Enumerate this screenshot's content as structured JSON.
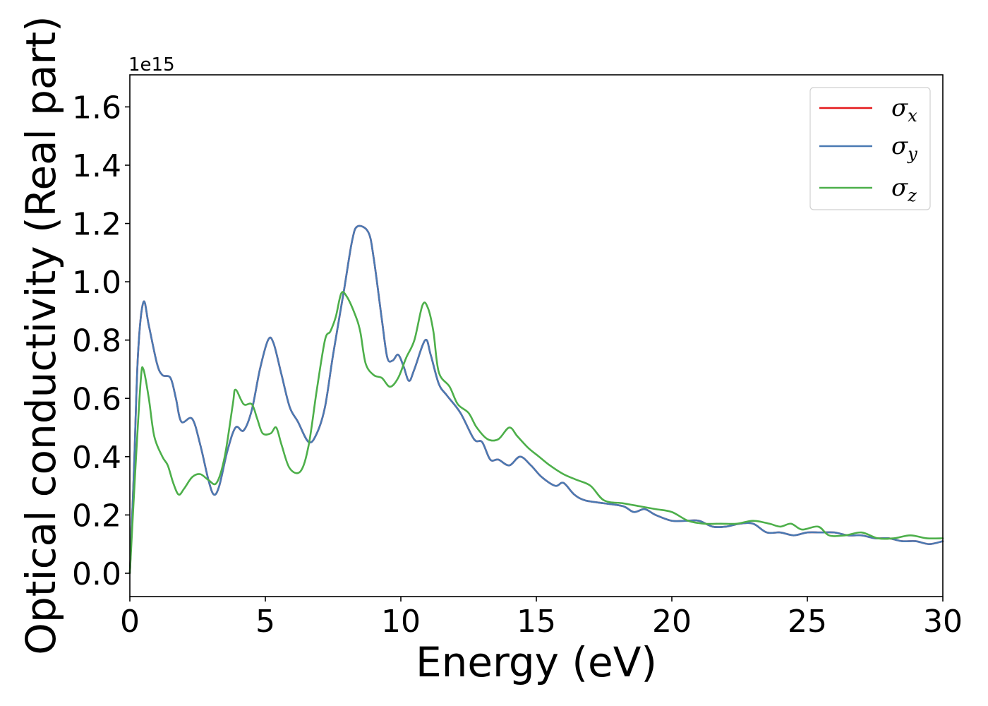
{
  "chart_data": {
    "type": "line",
    "xlabel": "Energy (eV)",
    "ylabel": "Optical conductivity (Real part)",
    "y_offset_label": "1e15",
    "xlim": [
      0,
      30
    ],
    "ylim": [
      -0.08,
      1.71
    ],
    "x_ticks": [
      0,
      5,
      10,
      15,
      20,
      25,
      30
    ],
    "x_tick_labels": [
      "0",
      "5",
      "10",
      "15",
      "20",
      "25",
      "30"
    ],
    "y_ticks": [
      0.0,
      0.2,
      0.4,
      0.6,
      0.8,
      1.0,
      1.2,
      1.4,
      1.6
    ],
    "y_tick_labels": [
      "0.0",
      "0.2",
      "0.4",
      "0.6",
      "0.8",
      "1.0",
      "1.2",
      "1.4",
      "1.6"
    ],
    "grid": false,
    "legend_position": "top-right",
    "series": [
      {
        "name": "σx",
        "legend_symbol": "σ",
        "legend_sub": "x",
        "color": "#e41a1c",
        "points": [
          [
            0,
            0.0
          ],
          [
            0.15,
            0.35
          ],
          [
            0.3,
            0.75
          ],
          [
            0.5,
            0.93
          ],
          [
            0.7,
            0.85
          ],
          [
            1.0,
            0.72
          ],
          [
            1.2,
            0.68
          ],
          [
            1.5,
            0.67
          ],
          [
            1.7,
            0.6
          ],
          [
            1.9,
            0.52
          ],
          [
            2.3,
            0.53
          ],
          [
            2.6,
            0.44
          ],
          [
            2.9,
            0.32
          ],
          [
            3.1,
            0.27
          ],
          [
            3.3,
            0.3
          ],
          [
            3.6,
            0.42
          ],
          [
            3.9,
            0.5
          ],
          [
            4.2,
            0.49
          ],
          [
            4.5,
            0.56
          ],
          [
            4.8,
            0.7
          ],
          [
            5.1,
            0.8
          ],
          [
            5.3,
            0.79
          ],
          [
            5.6,
            0.68
          ],
          [
            5.9,
            0.57
          ],
          [
            6.2,
            0.52
          ],
          [
            6.6,
            0.45
          ],
          [
            6.9,
            0.48
          ],
          [
            7.2,
            0.57
          ],
          [
            7.5,
            0.75
          ],
          [
            7.9,
            0.97
          ],
          [
            8.2,
            1.14
          ],
          [
            8.4,
            1.19
          ],
          [
            8.8,
            1.17
          ],
          [
            9.0,
            1.08
          ],
          [
            9.3,
            0.87
          ],
          [
            9.5,
            0.74
          ],
          [
            9.7,
            0.73
          ],
          [
            9.9,
            0.75
          ],
          [
            10.1,
            0.71
          ],
          [
            10.3,
            0.66
          ],
          [
            10.5,
            0.7
          ],
          [
            10.9,
            0.8
          ],
          [
            11.1,
            0.75
          ],
          [
            11.4,
            0.65
          ],
          [
            11.7,
            0.61
          ],
          [
            12.2,
            0.55
          ],
          [
            12.7,
            0.46
          ],
          [
            13.0,
            0.45
          ],
          [
            13.3,
            0.39
          ],
          [
            13.6,
            0.39
          ],
          [
            14.0,
            0.37
          ],
          [
            14.4,
            0.4
          ],
          [
            14.8,
            0.37
          ],
          [
            15.2,
            0.33
          ],
          [
            15.7,
            0.3
          ],
          [
            16.0,
            0.31
          ],
          [
            16.4,
            0.27
          ],
          [
            16.8,
            0.25
          ],
          [
            17.5,
            0.24
          ],
          [
            18.2,
            0.23
          ],
          [
            18.6,
            0.21
          ],
          [
            19.0,
            0.22
          ],
          [
            19.4,
            0.2
          ],
          [
            20.0,
            0.18
          ],
          [
            20.5,
            0.18
          ],
          [
            21.0,
            0.18
          ],
          [
            21.5,
            0.16
          ],
          [
            22.0,
            0.16
          ],
          [
            22.5,
            0.17
          ],
          [
            23.0,
            0.17
          ],
          [
            23.5,
            0.14
          ],
          [
            24.0,
            0.14
          ],
          [
            24.5,
            0.13
          ],
          [
            25.0,
            0.14
          ],
          [
            25.5,
            0.14
          ],
          [
            26.0,
            0.14
          ],
          [
            26.5,
            0.13
          ],
          [
            27.0,
            0.13
          ],
          [
            27.5,
            0.12
          ],
          [
            28.0,
            0.12
          ],
          [
            28.5,
            0.11
          ],
          [
            29.0,
            0.11
          ],
          [
            29.5,
            0.1
          ],
          [
            30.0,
            0.11
          ]
        ]
      },
      {
        "name": "σy",
        "legend_symbol": "σ",
        "legend_sub": "y",
        "color": "#4a7ab3",
        "points": [
          [
            0,
            0.0
          ],
          [
            0.15,
            0.35
          ],
          [
            0.3,
            0.75
          ],
          [
            0.5,
            0.93
          ],
          [
            0.7,
            0.85
          ],
          [
            1.0,
            0.72
          ],
          [
            1.2,
            0.68
          ],
          [
            1.5,
            0.67
          ],
          [
            1.7,
            0.6
          ],
          [
            1.9,
            0.52
          ],
          [
            2.3,
            0.53
          ],
          [
            2.6,
            0.44
          ],
          [
            2.9,
            0.32
          ],
          [
            3.1,
            0.27
          ],
          [
            3.3,
            0.3
          ],
          [
            3.6,
            0.42
          ],
          [
            3.9,
            0.5
          ],
          [
            4.2,
            0.49
          ],
          [
            4.5,
            0.56
          ],
          [
            4.8,
            0.7
          ],
          [
            5.1,
            0.8
          ],
          [
            5.3,
            0.79
          ],
          [
            5.6,
            0.68
          ],
          [
            5.9,
            0.57
          ],
          [
            6.2,
            0.52
          ],
          [
            6.6,
            0.45
          ],
          [
            6.9,
            0.48
          ],
          [
            7.2,
            0.57
          ],
          [
            7.5,
            0.75
          ],
          [
            7.9,
            0.97
          ],
          [
            8.2,
            1.14
          ],
          [
            8.4,
            1.19
          ],
          [
            8.8,
            1.17
          ],
          [
            9.0,
            1.08
          ],
          [
            9.3,
            0.87
          ],
          [
            9.5,
            0.74
          ],
          [
            9.7,
            0.73
          ],
          [
            9.9,
            0.75
          ],
          [
            10.1,
            0.71
          ],
          [
            10.3,
            0.66
          ],
          [
            10.5,
            0.7
          ],
          [
            10.9,
            0.8
          ],
          [
            11.1,
            0.75
          ],
          [
            11.4,
            0.65
          ],
          [
            11.7,
            0.61
          ],
          [
            12.2,
            0.55
          ],
          [
            12.7,
            0.46
          ],
          [
            13.0,
            0.45
          ],
          [
            13.3,
            0.39
          ],
          [
            13.6,
            0.39
          ],
          [
            14.0,
            0.37
          ],
          [
            14.4,
            0.4
          ],
          [
            14.8,
            0.37
          ],
          [
            15.2,
            0.33
          ],
          [
            15.7,
            0.3
          ],
          [
            16.0,
            0.31
          ],
          [
            16.4,
            0.27
          ],
          [
            16.8,
            0.25
          ],
          [
            17.5,
            0.24
          ],
          [
            18.2,
            0.23
          ],
          [
            18.6,
            0.21
          ],
          [
            19.0,
            0.22
          ],
          [
            19.4,
            0.2
          ],
          [
            20.0,
            0.18
          ],
          [
            20.5,
            0.18
          ],
          [
            21.0,
            0.18
          ],
          [
            21.5,
            0.16
          ],
          [
            22.0,
            0.16
          ],
          [
            22.5,
            0.17
          ],
          [
            23.0,
            0.17
          ],
          [
            23.5,
            0.14
          ],
          [
            24.0,
            0.14
          ],
          [
            24.5,
            0.13
          ],
          [
            25.0,
            0.14
          ],
          [
            25.5,
            0.14
          ],
          [
            26.0,
            0.14
          ],
          [
            26.5,
            0.13
          ],
          [
            27.0,
            0.13
          ],
          [
            27.5,
            0.12
          ],
          [
            28.0,
            0.12
          ],
          [
            28.5,
            0.11
          ],
          [
            29.0,
            0.11
          ],
          [
            29.5,
            0.1
          ],
          [
            30.0,
            0.11
          ]
        ]
      },
      {
        "name": "σz",
        "legend_symbol": "σ",
        "legend_sub": "z",
        "color": "#4daf4a",
        "points": [
          [
            0,
            0.0
          ],
          [
            0.2,
            0.35
          ],
          [
            0.4,
            0.66
          ],
          [
            0.5,
            0.7
          ],
          [
            0.7,
            0.6
          ],
          [
            0.9,
            0.47
          ],
          [
            1.2,
            0.4
          ],
          [
            1.4,
            0.37
          ],
          [
            1.6,
            0.31
          ],
          [
            1.8,
            0.27
          ],
          [
            2.0,
            0.29
          ],
          [
            2.3,
            0.33
          ],
          [
            2.6,
            0.34
          ],
          [
            2.9,
            0.32
          ],
          [
            3.2,
            0.31
          ],
          [
            3.5,
            0.4
          ],
          [
            3.8,
            0.58
          ],
          [
            3.9,
            0.63
          ],
          [
            4.2,
            0.58
          ],
          [
            4.5,
            0.58
          ],
          [
            4.7,
            0.53
          ],
          [
            4.9,
            0.48
          ],
          [
            5.2,
            0.48
          ],
          [
            5.4,
            0.5
          ],
          [
            5.6,
            0.44
          ],
          [
            5.9,
            0.36
          ],
          [
            6.3,
            0.35
          ],
          [
            6.6,
            0.44
          ],
          [
            6.9,
            0.63
          ],
          [
            7.2,
            0.8
          ],
          [
            7.4,
            0.83
          ],
          [
            7.6,
            0.88
          ],
          [
            7.8,
            0.96
          ],
          [
            8.0,
            0.95
          ],
          [
            8.3,
            0.89
          ],
          [
            8.5,
            0.83
          ],
          [
            8.7,
            0.72
          ],
          [
            9.0,
            0.68
          ],
          [
            9.3,
            0.67
          ],
          [
            9.6,
            0.64
          ],
          [
            9.9,
            0.67
          ],
          [
            10.2,
            0.74
          ],
          [
            10.5,
            0.8
          ],
          [
            10.8,
            0.92
          ],
          [
            11.0,
            0.91
          ],
          [
            11.2,
            0.83
          ],
          [
            11.4,
            0.69
          ],
          [
            11.8,
            0.64
          ],
          [
            12.1,
            0.58
          ],
          [
            12.5,
            0.55
          ],
          [
            12.8,
            0.5
          ],
          [
            13.2,
            0.46
          ],
          [
            13.6,
            0.46
          ],
          [
            14.0,
            0.5
          ],
          [
            14.3,
            0.47
          ],
          [
            14.7,
            0.43
          ],
          [
            15.1,
            0.4
          ],
          [
            15.5,
            0.37
          ],
          [
            16.0,
            0.34
          ],
          [
            16.5,
            0.32
          ],
          [
            17.0,
            0.3
          ],
          [
            17.5,
            0.25
          ],
          [
            18.2,
            0.24
          ],
          [
            18.8,
            0.23
          ],
          [
            19.4,
            0.22
          ],
          [
            20.0,
            0.21
          ],
          [
            20.6,
            0.18
          ],
          [
            21.2,
            0.17
          ],
          [
            21.8,
            0.17
          ],
          [
            22.4,
            0.17
          ],
          [
            23.0,
            0.18
          ],
          [
            23.6,
            0.17
          ],
          [
            24.0,
            0.16
          ],
          [
            24.4,
            0.17
          ],
          [
            24.8,
            0.15
          ],
          [
            25.4,
            0.16
          ],
          [
            25.8,
            0.13
          ],
          [
            26.4,
            0.13
          ],
          [
            27.0,
            0.14
          ],
          [
            27.6,
            0.12
          ],
          [
            28.2,
            0.12
          ],
          [
            28.8,
            0.13
          ],
          [
            29.4,
            0.12
          ],
          [
            30.0,
            0.12
          ]
        ]
      }
    ]
  }
}
